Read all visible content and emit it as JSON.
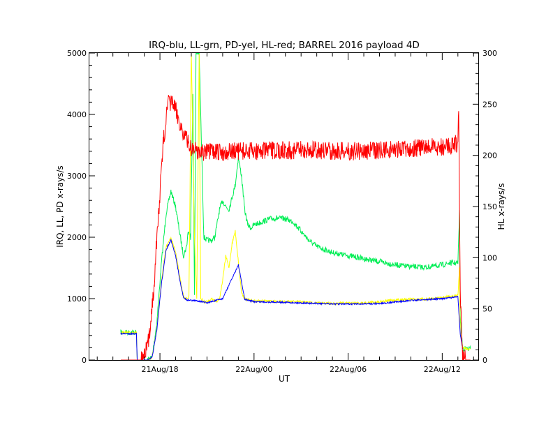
{
  "chart_data": {
    "type": "line",
    "title": "IRQ-blu, LL-grn, PD-yel, HL-red; BARREL 2016 payload 4D",
    "xlabel": "UT",
    "ylabel_left": "IRQ, LL, PD x-rays/s",
    "ylabel_right": "HL x-rays/s",
    "x_unit": "hours since 21Aug/00 UT",
    "xlim": [
      13.5,
      38.3
    ],
    "ylim_left": [
      0,
      5000
    ],
    "ylim_right": [
      0,
      300
    ],
    "x_ticks": [
      {
        "x": 18,
        "label": "21Aug/18"
      },
      {
        "x": 24,
        "label": "22Aug/00"
      },
      {
        "x": 30,
        "label": "22Aug/06"
      },
      {
        "x": 36,
        "label": "22Aug/12"
      }
    ],
    "y_ticks_left": [
      "0",
      "1000",
      "2000",
      "3000",
      "4000",
      "5000"
    ],
    "y_ticks_right": [
      "0",
      "50",
      "100",
      "150",
      "200",
      "250",
      "300"
    ],
    "colors": {
      "IRQ": "#0000ff",
      "LL": "#00ee55",
      "PD": "#ffff00",
      "HL": "#ff0000",
      "axes": "#000000"
    },
    "series": [
      {
        "name": "LL",
        "axis": "left",
        "x": [
          15.5,
          16.5,
          16.55,
          17.2,
          17.5,
          17.8,
          18.1,
          18.4,
          18.7,
          19.0,
          19.3,
          19.5,
          19.7,
          19.8,
          19.95,
          20.1,
          20.2,
          20.3,
          20.5,
          20.8,
          21.0,
          21.3,
          21.5,
          21.8,
          22.0,
          22.2,
          22.4,
          22.6,
          22.8,
          23.0,
          23.2,
          23.4,
          23.6,
          23.8,
          24.0,
          24.5,
          25.0,
          25.5,
          26.0,
          26.5,
          27.0,
          27.5,
          28.0,
          28.5,
          29.0,
          30.0,
          31.0,
          32.0,
          33.0,
          34.0,
          35.0,
          36.0,
          36.5,
          37.0,
          37.1,
          37.15,
          37.3,
          37.5,
          37.8
        ],
        "values": [
          450,
          450,
          0,
          0,
          50,
          600,
          1600,
          2400,
          2750,
          2500,
          2000,
          1700,
          1850,
          2100,
          2000,
          4300,
          1100,
          5000,
          5000,
          2000,
          1950,
          1950,
          2000,
          2450,
          2600,
          2500,
          2450,
          2650,
          2850,
          3300,
          3000,
          2450,
          2200,
          2150,
          2200,
          2250,
          2300,
          2310,
          2300,
          2250,
          2100,
          1950,
          1850,
          1800,
          1750,
          1700,
          1650,
          1600,
          1550,
          1520,
          1510,
          1550,
          1580,
          1580,
          2400,
          700,
          200,
          180,
          180
        ]
      },
      {
        "name": "PD",
        "axis": "left",
        "x": [
          15.5,
          16.5,
          16.55,
          17.2,
          17.5,
          17.8,
          18.1,
          18.4,
          18.7,
          19.0,
          19.3,
          19.5,
          19.6,
          19.75,
          19.85,
          20.0,
          20.2,
          20.35,
          20.5,
          20.6,
          20.8,
          21.0,
          21.3,
          21.6,
          21.8,
          22.0,
          22.2,
          22.4,
          22.6,
          22.8,
          23.0,
          23.2,
          23.4,
          23.6,
          23.8,
          24.0,
          24.5,
          25.0,
          26.0,
          27.0,
          28.0,
          29.0,
          30.0,
          31.0,
          32.0,
          33.0,
          34.0,
          35.0,
          36.0,
          36.5,
          37.0,
          37.1,
          37.15,
          37.3,
          37.5,
          37.8
        ],
        "values": [
          450,
          450,
          0,
          0,
          40,
          500,
          1300,
          1850,
          2000,
          1750,
          1300,
          1050,
          1000,
          1000,
          1050,
          5000,
          2000,
          1000,
          5000,
          1000,
          950,
          950,
          1000,
          950,
          1000,
          1300,
          1700,
          1500,
          1900,
          2100,
          1600,
          1100,
          1000,
          980,
          970,
          960,
          960,
          960,
          950,
          950,
          930,
          920,
          930,
          930,
          950,
          980,
          990,
          990,
          1020,
          1040,
          1050,
          1500,
          450,
          200,
          180,
          180
        ]
      },
      {
        "name": "IRQ",
        "axis": "left",
        "x": [
          15.5,
          16.5,
          16.55,
          17.2,
          17.5,
          17.8,
          18.1,
          18.4,
          18.7,
          19.0,
          19.3,
          19.5,
          19.7,
          20.5,
          21.0,
          22.0,
          23.0,
          23.4,
          24.0,
          26.0,
          28.0,
          30.0,
          32.0,
          34.0,
          36.0,
          37.0,
          37.15,
          37.3
        ],
        "values": [
          430,
          430,
          0,
          0,
          40,
          480,
          1250,
          1800,
          1950,
          1700,
          1250,
          1020,
          980,
          960,
          930,
          1000,
          1550,
          990,
          950,
          940,
          920,
          910,
          920,
          970,
          1000,
          1030,
          430,
          180
        ]
      },
      {
        "name": "HL",
        "axis": "right",
        "x": [
          15.5,
          16.8,
          17.0,
          17.3,
          17.6,
          17.9,
          18.2,
          18.5,
          18.8,
          19.1,
          19.4,
          19.7,
          20.0,
          20.3,
          20.6,
          21.0,
          22.0,
          23.0,
          24.0,
          26.0,
          28.0,
          30.0,
          32.0,
          34.0,
          36.0,
          36.6,
          37.0,
          37.05,
          37.15,
          37.3,
          37.5,
          37.8
        ],
        "values": [
          0,
          0,
          2,
          20,
          70,
          140,
          210,
          250,
          252,
          240,
          225,
          215,
          207,
          205,
          204,
          203,
          203,
          204,
          204,
          205,
          205,
          204,
          205,
          207,
          208,
          210,
          212,
          250,
          60,
          5,
          0,
          0
        ]
      }
    ]
  }
}
